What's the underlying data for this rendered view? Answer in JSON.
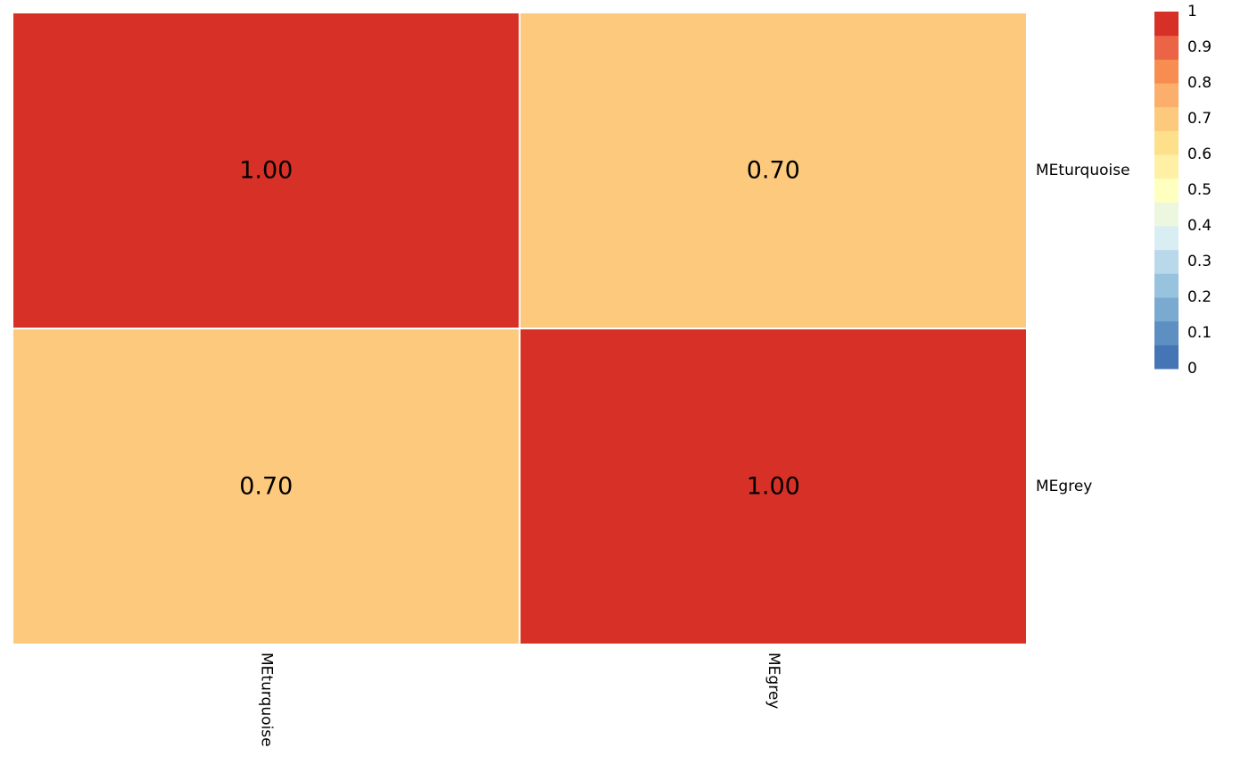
{
  "chart_data": {
    "type": "heatmap",
    "rows": [
      "MEturquoise",
      "MEgrey"
    ],
    "columns": [
      "MEturquoise",
      "MEgrey"
    ],
    "values": [
      [
        1.0,
        0.7
      ],
      [
        0.7,
        1.0
      ]
    ],
    "cell_labels": [
      [
        "1.00",
        "0.70"
      ],
      [
        "0.70",
        "1.00"
      ]
    ],
    "legend": {
      "placement": "top-right",
      "ticks": [
        "1",
        "0.9",
        "0.8",
        "0.7",
        "0.6",
        "0.5",
        "0.4",
        "0.3",
        "0.2",
        "0.1",
        "0"
      ],
      "colors": [
        "#4575b4",
        "#5e8fc2",
        "#7aaad0",
        "#98c3de",
        "#b9d8e9",
        "#d9eef3",
        "#edf7df",
        "#ffffbf",
        "#fff0a6",
        "#fee08b",
        "#fdc97d",
        "#fcaf6c",
        "#f88d52",
        "#ec6446",
        "#d73027"
      ]
    }
  }
}
